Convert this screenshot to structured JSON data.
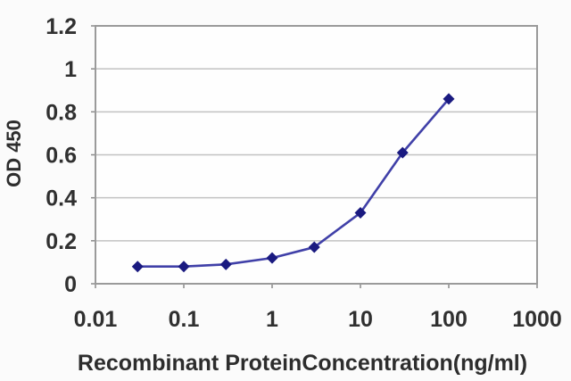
{
  "figure": {
    "background": "#fbfbfb",
    "plot_background": "#fefefe"
  },
  "chart_data": {
    "type": "line",
    "title": "",
    "xlabel": "Recombinant ProteinConcentration(ng/ml)",
    "ylabel": "OD 450",
    "x_scale": "log",
    "xlim": [
      0.01,
      1000
    ],
    "ylim": [
      0,
      1.2
    ],
    "x_ticks": [
      0.01,
      0.1,
      1,
      10,
      100,
      1000
    ],
    "x_tick_labels": [
      "0.01",
      "0.1",
      "1",
      "10",
      "100",
      "1000"
    ],
    "y_ticks": [
      0,
      0.2,
      0.4,
      0.6,
      0.8,
      1,
      1.2
    ],
    "y_tick_labels": [
      "0",
      "0.2",
      "0.4",
      "0.6",
      "0.8",
      "1",
      "1.2"
    ],
    "grid": "horizontal",
    "legend": null,
    "series": [
      {
        "name": "OD450",
        "x": [
          0.03,
          0.1,
          0.3,
          1,
          3,
          10,
          30,
          100
        ],
        "y": [
          0.08,
          0.08,
          0.09,
          0.12,
          0.17,
          0.33,
          0.61,
          0.86
        ],
        "marker": "diamond",
        "line_color": "#4040a8",
        "marker_color": "#1a1a80"
      }
    ],
    "colors": {
      "grid": "#c2c2c2",
      "plot_border": "#9a9a9a",
      "tick": "#8a8a8a",
      "text": "#303030"
    }
  }
}
